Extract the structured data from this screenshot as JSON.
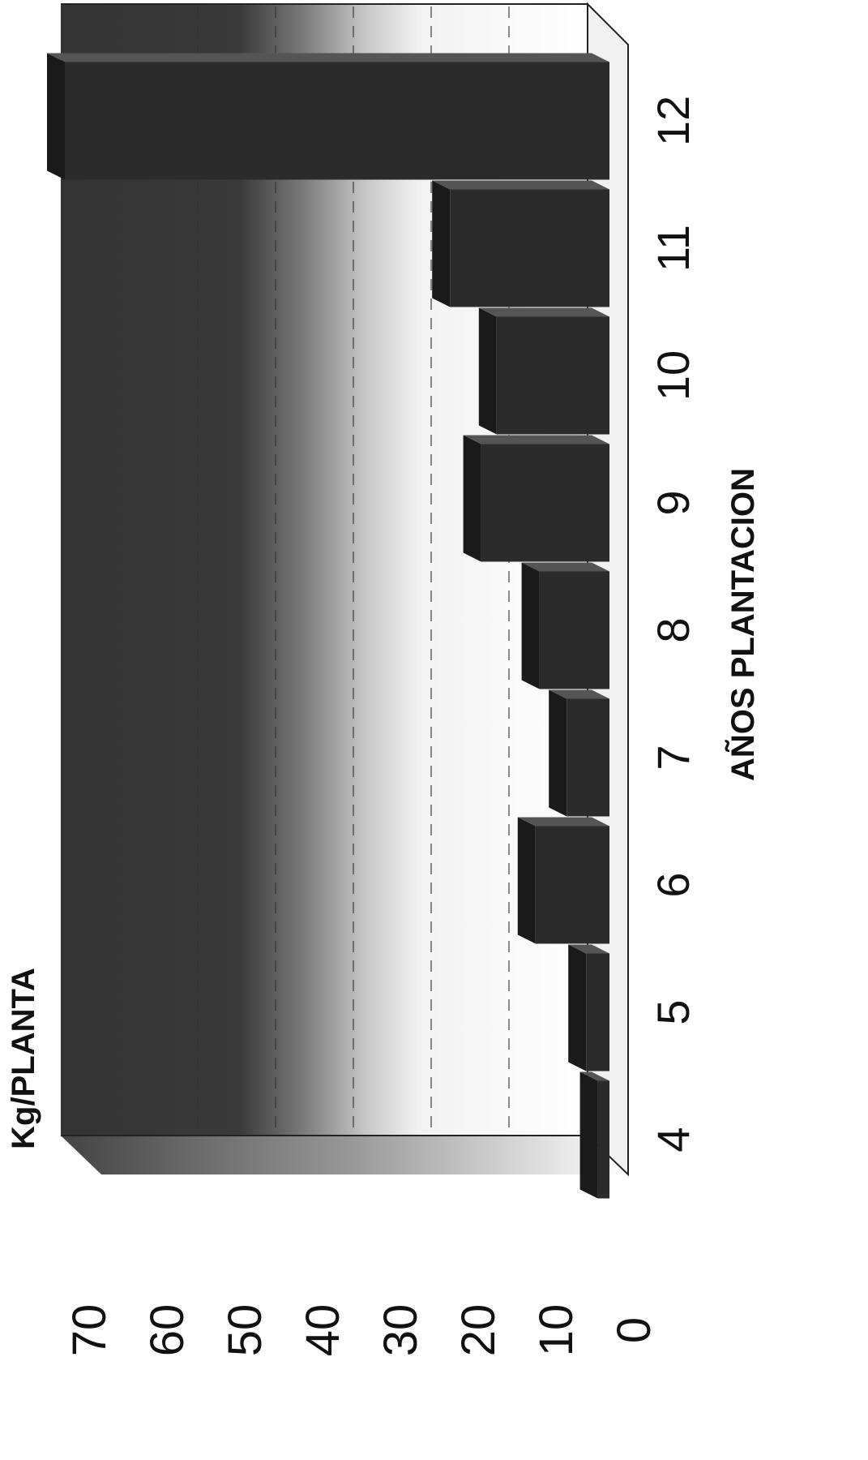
{
  "chart_data": {
    "type": "bar",
    "orientation": "rotated-90-clockwise",
    "style": "3d-with-gradient-wall",
    "categories": [
      "4",
      "5",
      "6",
      "7",
      "8",
      "9",
      "10",
      "11",
      "12"
    ],
    "values": [
      1.5,
      3,
      9.5,
      5.5,
      9,
      16.5,
      14.5,
      20.5,
      70
    ],
    "ylabel": "Kg/PLANTA",
    "xlabel": "AÑOS PLANTACION",
    "yticks": [
      "70",
      "60",
      "50",
      "40",
      "30",
      "20",
      "10",
      "0"
    ],
    "ylim": [
      0,
      70
    ],
    "grid": "dashed-major",
    "colors": {
      "bar": "#2b2b2b",
      "wall_dark": "#3a3a3a",
      "wall_light": "#ffffff",
      "text": "#111111"
    }
  }
}
